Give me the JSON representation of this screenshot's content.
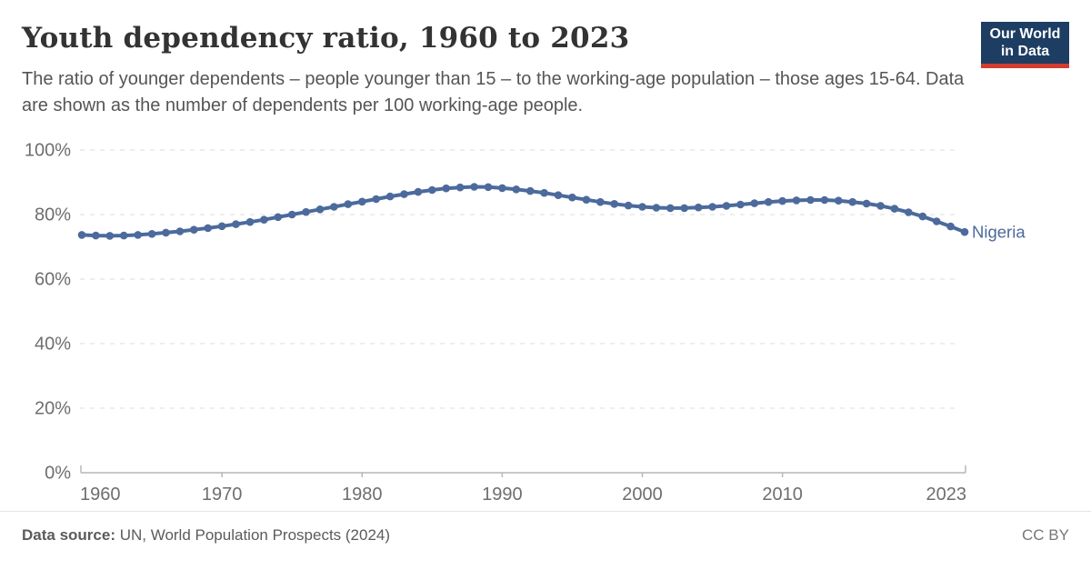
{
  "header": {
    "title": "Youth dependency ratio, 1960 to 2023",
    "subtitle": "The ratio of younger dependents – people younger than 15 – to the working-age population – those ages 15-64. Data are shown as the number of dependents per 100 working-age people.",
    "logo": {
      "line1": "Our World",
      "line2": "in Data",
      "bg_color": "#1d3d63",
      "accent_color": "#d23b2e"
    }
  },
  "chart_data": {
    "type": "line",
    "title": "Youth dependency ratio, 1960 to 2023",
    "xlabel": "",
    "ylabel": "",
    "xlim": [
      1960,
      2023
    ],
    "ylim": [
      0,
      100
    ],
    "grid": "horizontal-dashed",
    "marker": "circle",
    "x_ticks": [
      1960,
      1970,
      1980,
      1990,
      2000,
      2010,
      2023
    ],
    "y_ticks": [
      0,
      20,
      40,
      60,
      80,
      100
    ],
    "y_tick_labels": [
      "0%",
      "20%",
      "40%",
      "60%",
      "80%",
      "100%"
    ],
    "legend_position": "end-of-line-label",
    "series": [
      {
        "name": "Nigeria",
        "color": "#4C6A9C",
        "x_start": 1960,
        "x_step": 1,
        "values": [
          73.7,
          73.5,
          73.4,
          73.5,
          73.7,
          74.0,
          74.4,
          74.8,
          75.3,
          75.8,
          76.4,
          77.0,
          77.7,
          78.4,
          79.2,
          80.0,
          80.8,
          81.6,
          82.4,
          83.2,
          84.0,
          84.8,
          85.6,
          86.3,
          87.0,
          87.6,
          88.1,
          88.4,
          88.6,
          88.5,
          88.2,
          87.8,
          87.3,
          86.7,
          86.0,
          85.3,
          84.6,
          83.9,
          83.3,
          82.8,
          82.4,
          82.1,
          82.0,
          82.0,
          82.2,
          82.4,
          82.7,
          83.1,
          83.5,
          83.9,
          84.2,
          84.4,
          84.5,
          84.5,
          84.3,
          83.9,
          83.4,
          82.7,
          81.8,
          80.7,
          79.4,
          77.9,
          76.3,
          74.6
        ]
      }
    ],
    "colors": {
      "gridline": "#dedede",
      "axis": "#b7b7b7",
      "tick_text": "#6e6e6e"
    }
  },
  "footer": {
    "source_label": "Data source:",
    "source_text": " UN, World Population Prospects (2024)",
    "license": "CC BY"
  }
}
